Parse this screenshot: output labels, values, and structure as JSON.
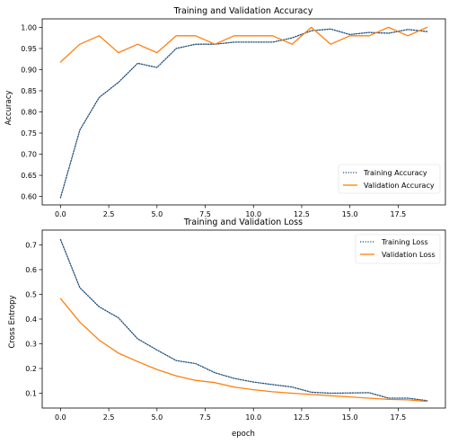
{
  "chart_data": [
    {
      "type": "line",
      "title": "Training and Validation Accuracy",
      "xlabel": "",
      "ylabel": "Accuracy",
      "xlim": [
        -0.95,
        19.95
      ],
      "ylim": [
        0.58,
        1.02
      ],
      "xticks": [
        0.0,
        2.5,
        5.0,
        7.5,
        10.0,
        12.5,
        15.0,
        17.5
      ],
      "xtick_labels": [
        "0.0",
        "2.5",
        "5.0",
        "7.5",
        "10.0",
        "12.5",
        "15.0",
        "17.5"
      ],
      "yticks": [
        0.6,
        0.65,
        0.7,
        0.75,
        0.8,
        0.85,
        0.9,
        0.95,
        1.0
      ],
      "ytick_labels": [
        "0.60",
        "0.65",
        "0.70",
        "0.75",
        "0.80",
        "0.85",
        "0.90",
        "0.95",
        "1.00"
      ],
      "legend_position": "lower right",
      "grid": false,
      "x": [
        0,
        1,
        2,
        3,
        4,
        5,
        6,
        7,
        8,
        9,
        10,
        11,
        12,
        13,
        14,
        15,
        16,
        17,
        18,
        19
      ],
      "series": [
        {
          "name": "Training Accuracy",
          "color": "#1f4e79",
          "dash": "dotted",
          "values": [
            0.597,
            0.757,
            0.834,
            0.87,
            0.915,
            0.905,
            0.95,
            0.96,
            0.96,
            0.965,
            0.965,
            0.965,
            0.975,
            0.992,
            0.996,
            0.983,
            0.988,
            0.986,
            0.995,
            0.99
          ]
        },
        {
          "name": "Validation Accuracy",
          "color": "#ff7f0e",
          "dash": "solid",
          "values": [
            0.918,
            0.96,
            0.98,
            0.94,
            0.96,
            0.94,
            0.98,
            0.98,
            0.96,
            0.98,
            0.98,
            0.98,
            0.96,
            1.0,
            0.96,
            0.98,
            0.98,
            1.0,
            0.98,
            1.0
          ]
        }
      ]
    },
    {
      "type": "line",
      "title": "Training and Validation Loss",
      "xlabel": "epoch",
      "ylabel": "Cross Entropy",
      "xlim": [
        -0.95,
        19.95
      ],
      "ylim": [
        0.04,
        0.76
      ],
      "xticks": [
        0.0,
        2.5,
        5.0,
        7.5,
        10.0,
        12.5,
        15.0,
        17.5
      ],
      "xtick_labels": [
        "0.0",
        "2.5",
        "5.0",
        "7.5",
        "10.0",
        "12.5",
        "15.0",
        "17.5"
      ],
      "yticks": [
        0.1,
        0.2,
        0.3,
        0.4,
        0.5,
        0.6,
        0.7
      ],
      "ytick_labels": [
        "0.1",
        "0.2",
        "0.3",
        "0.4",
        "0.5",
        "0.6",
        "0.7"
      ],
      "legend_position": "upper right",
      "grid": false,
      "x": [
        0,
        1,
        2,
        3,
        4,
        5,
        6,
        7,
        8,
        9,
        10,
        11,
        12,
        13,
        14,
        15,
        16,
        17,
        18,
        19
      ],
      "series": [
        {
          "name": "Training Loss",
          "color": "#1f4e79",
          "dash": "dotted",
          "values": [
            0.722,
            0.527,
            0.45,
            0.405,
            0.32,
            0.275,
            0.232,
            0.22,
            0.183,
            0.16,
            0.145,
            0.135,
            0.125,
            0.104,
            0.1,
            0.101,
            0.102,
            0.08,
            0.08,
            0.07
          ]
        },
        {
          "name": "Validation Loss",
          "color": "#ff7f0e",
          "dash": "solid",
          "values": [
            0.483,
            0.388,
            0.315,
            0.262,
            0.228,
            0.196,
            0.17,
            0.152,
            0.143,
            0.125,
            0.114,
            0.106,
            0.1,
            0.095,
            0.09,
            0.085,
            0.08,
            0.075,
            0.073,
            0.067
          ]
        }
      ]
    }
  ]
}
